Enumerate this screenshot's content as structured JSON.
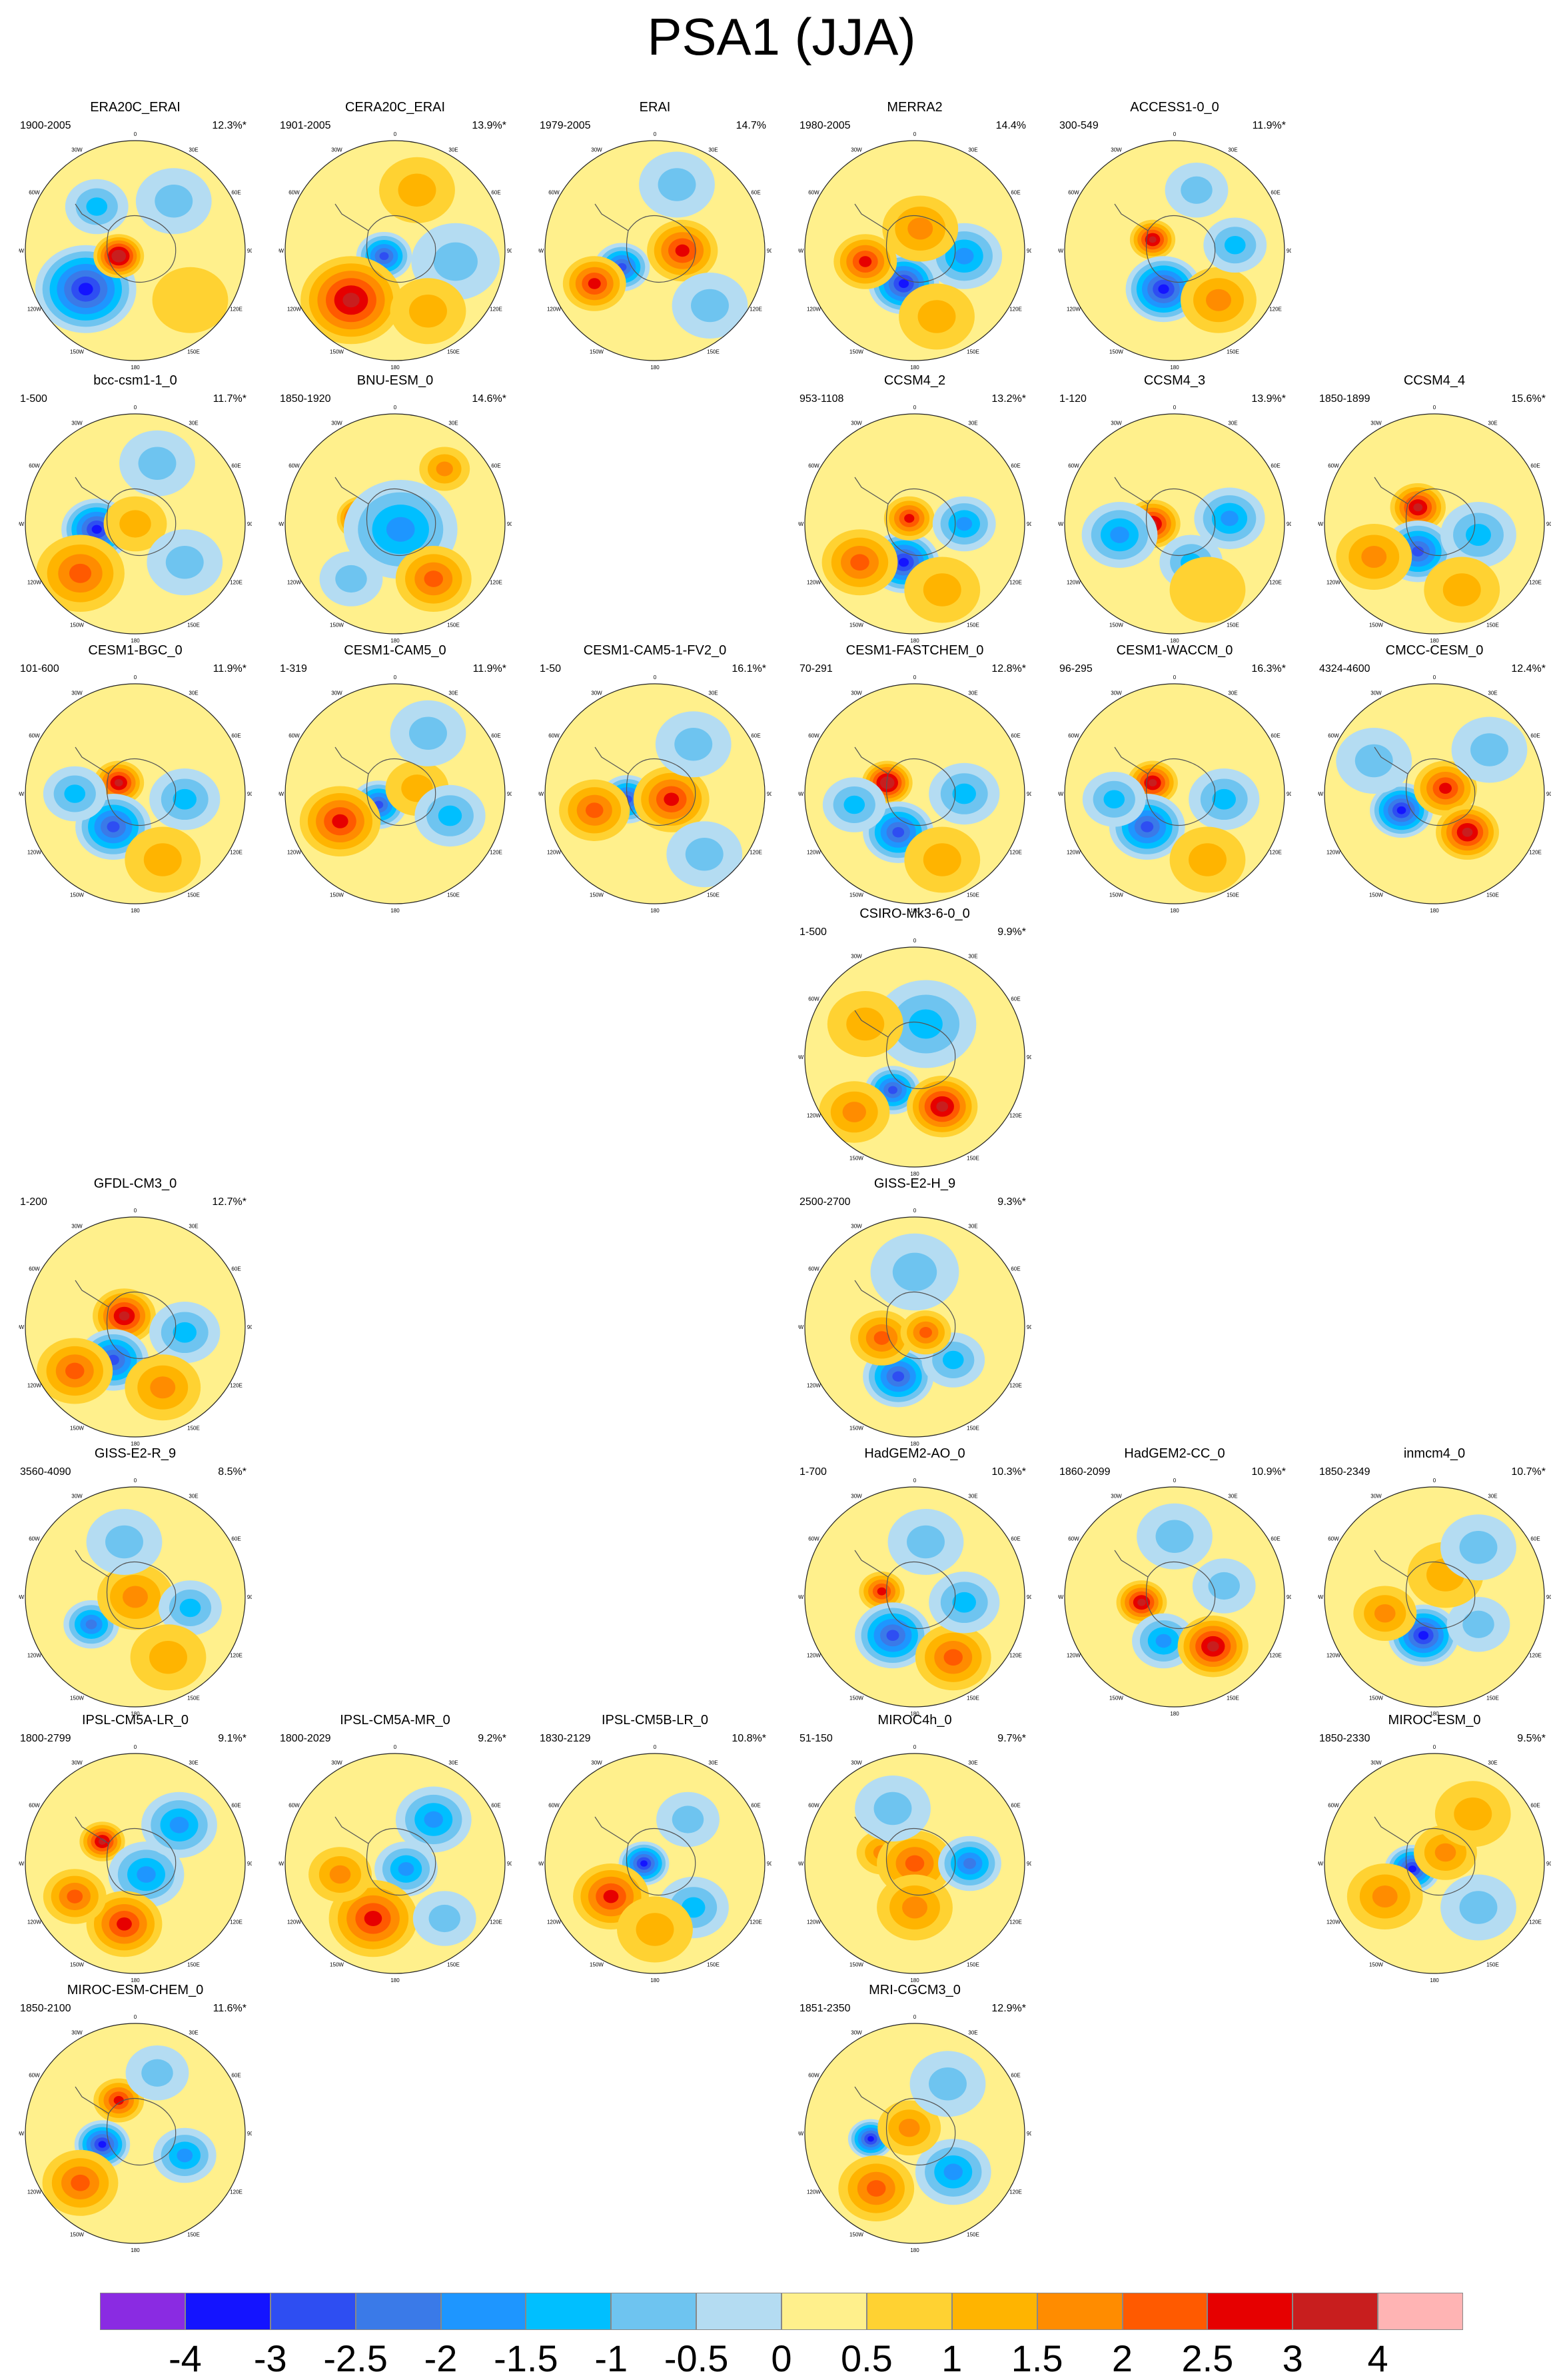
{
  "title": "PSA1 (JJA)",
  "panels": [
    {
      "id": "ERA20C_ERAI",
      "name": "ERA20C_ERAI",
      "years": "1900-2005",
      "pct": "12.3%*",
      "row": 0,
      "col": 0,
      "blobs": [
        [
          -0.45,
          0.35,
          0.4,
          -4
        ],
        [
          -0.15,
          0.05,
          0.2,
          3.5
        ],
        [
          0.35,
          -0.45,
          0.3,
          -1
        ],
        [
          0.5,
          0.45,
          0.3,
          0.5
        ],
        [
          -0.35,
          -0.4,
          0.25,
          -1.5
        ]
      ]
    },
    {
      "id": "CERA20C_ERAI",
      "name": "CERA20C_ERAI",
      "years": "1901-2005",
      "pct": "13.9%*",
      "row": 0,
      "col": 1,
      "blobs": [
        [
          -0.1,
          0.05,
          0.22,
          -3
        ],
        [
          -0.4,
          0.45,
          0.4,
          3
        ],
        [
          0.2,
          -0.55,
          0.3,
          1
        ],
        [
          0.55,
          0.1,
          0.35,
          -0.8
        ],
        [
          0.3,
          0.55,
          0.3,
          0.8
        ]
      ]
    },
    {
      "id": "ERAI",
      "name": "ERAI",
      "years": "1979-2005",
      "pct": "14.7%",
      "row": 0,
      "col": 2,
      "blobs": [
        [
          -0.3,
          0.15,
          0.22,
          -3
        ],
        [
          0.25,
          0.0,
          0.28,
          2.5
        ],
        [
          -0.55,
          0.3,
          0.25,
          2.5
        ],
        [
          0.5,
          0.5,
          0.3,
          -1
        ],
        [
          0.2,
          -0.6,
          0.3,
          -1
        ]
      ]
    },
    {
      "id": "MERRA2",
      "name": "MERRA2",
      "years": "1980-2005",
      "pct": "14.4%",
      "row": 0,
      "col": 3,
      "blobs": [
        [
          -0.1,
          0.3,
          0.28,
          -3.5
        ],
        [
          -0.45,
          0.1,
          0.25,
          2.5
        ],
        [
          0.45,
          0.05,
          0.3,
          -2
        ],
        [
          0.05,
          -0.2,
          0.3,
          1.5
        ],
        [
          0.2,
          0.6,
          0.3,
          1
        ]
      ]
    },
    {
      "id": "ACCESS1-0_0",
      "name": "ACCESS1-0_0",
      "years": "300-549",
      "pct": "11.9%*",
      "row": 0,
      "col": 4,
      "blobs": [
        [
          -0.2,
          -0.1,
          0.18,
          3
        ],
        [
          -0.1,
          0.35,
          0.3,
          -3.5
        ],
        [
          0.4,
          0.45,
          0.3,
          1.5
        ],
        [
          0.55,
          -0.05,
          0.25,
          -1.5
        ],
        [
          0.2,
          -0.55,
          0.25,
          -1
        ]
      ]
    },
    {
      "id": "bcc-csm1-1_0",
      "name": "bcc-csm1-1_0",
      "years": "1-500",
      "pct": "11.7%*",
      "row": 1,
      "col": 0,
      "blobs": [
        [
          -0.35,
          0.05,
          0.28,
          -3.5
        ],
        [
          -0.5,
          0.45,
          0.35,
          2
        ],
        [
          0.0,
          0.0,
          0.25,
          1
        ],
        [
          0.45,
          0.35,
          0.3,
          -1
        ],
        [
          0.2,
          -0.55,
          0.3,
          -0.8
        ]
      ]
    },
    {
      "id": "BNU-ESM_0",
      "name": "BNU-ESM_0",
      "years": "1850-1920",
      "pct": "14.6%*",
      "row": 1,
      "col": 1,
      "blobs": [
        [
          -0.3,
          -0.05,
          0.2,
          3.5
        ],
        [
          0.05,
          0.05,
          0.45,
          -2
        ],
        [
          0.35,
          0.5,
          0.3,
          2
        ],
        [
          0.45,
          -0.5,
          0.2,
          1.5
        ],
        [
          -0.4,
          0.5,
          0.25,
          -1
        ]
      ]
    },
    {
      "id": "CCSM4_2",
      "name": "CCSM4_2",
      "years": "953-1108",
      "pct": "13.2%*",
      "row": 1,
      "col": 3,
      "blobs": [
        [
          -0.1,
          0.35,
          0.28,
          -3.5
        ],
        [
          -0.05,
          -0.05,
          0.2,
          2.5
        ],
        [
          -0.5,
          0.35,
          0.3,
          2
        ],
        [
          0.45,
          0.0,
          0.25,
          -2
        ],
        [
          0.25,
          0.6,
          0.3,
          1
        ]
      ]
    },
    {
      "id": "CCSM4_3",
      "name": "CCSM4_3",
      "years": "1-120",
      "pct": "13.9%*",
      "row": 1,
      "col": 4,
      "blobs": [
        [
          -0.2,
          0.0,
          0.22,
          3
        ],
        [
          -0.5,
          0.1,
          0.3,
          -2
        ],
        [
          0.15,
          0.35,
          0.25,
          -1.5
        ],
        [
          0.5,
          -0.05,
          0.28,
          -2
        ],
        [
          0.3,
          0.6,
          0.3,
          0.5
        ]
      ]
    },
    {
      "id": "CCSM4_4",
      "name": "CCSM4_4",
      "years": "1850-1899",
      "pct": "15.6%*",
      "row": 1,
      "col": 5,
      "blobs": [
        [
          -0.15,
          -0.15,
          0.22,
          3
        ],
        [
          -0.15,
          0.25,
          0.28,
          -3
        ],
        [
          -0.55,
          0.3,
          0.3,
          1.5
        ],
        [
          0.4,
          0.1,
          0.3,
          -1.5
        ],
        [
          0.25,
          0.6,
          0.3,
          1
        ]
      ]
    },
    {
      "id": "CESM1-BGC_0",
      "name": "CESM1-BGC_0",
      "years": "101-600",
      "pct": "11.9%*",
      "row": 2,
      "col": 0,
      "blobs": [
        [
          -0.15,
          -0.1,
          0.2,
          3
        ],
        [
          -0.2,
          0.3,
          0.3,
          -3
        ],
        [
          -0.55,
          0.0,
          0.25,
          -1.5
        ],
        [
          0.45,
          0.05,
          0.28,
          -1.5
        ],
        [
          0.25,
          0.6,
          0.3,
          1
        ]
      ]
    },
    {
      "id": "CESM1-CAM5_0",
      "name": "CESM1-CAM5_0",
      "years": "1-319",
      "pct": "11.9%*",
      "row": 2,
      "col": 1,
      "blobs": [
        [
          -0.15,
          0.1,
          0.22,
          -3
        ],
        [
          -0.5,
          0.25,
          0.32,
          2.5
        ],
        [
          0.2,
          -0.05,
          0.25,
          1
        ],
        [
          0.5,
          0.2,
          0.28,
          -1.5
        ],
        [
          0.3,
          -0.55,
          0.3,
          -1
        ]
      ]
    },
    {
      "id": "CESM1-CAM5-1-FV2_0",
      "name": "CESM1-CAM5-1-FV2_0",
      "years": "1-50",
      "pct": "16.1%*",
      "row": 2,
      "col": 2,
      "blobs": [
        [
          -0.25,
          0.05,
          0.22,
          -3
        ],
        [
          0.15,
          0.05,
          0.3,
          2.5
        ],
        [
          -0.55,
          0.15,
          0.28,
          2
        ],
        [
          0.45,
          0.55,
          0.3,
          -1
        ],
        [
          0.35,
          -0.45,
          0.3,
          -1
        ]
      ]
    },
    {
      "id": "CESM1-FASTCHEM_0",
      "name": "CESM1-FASTCHEM_0",
      "years": "70-291",
      "pct": "12.8%*",
      "row": 2,
      "col": 3,
      "blobs": [
        [
          -0.25,
          -0.1,
          0.2,
          3.5
        ],
        [
          -0.15,
          0.35,
          0.28,
          -3
        ],
        [
          -0.55,
          0.1,
          0.25,
          -1.5
        ],
        [
          0.45,
          0.0,
          0.28,
          -1.5
        ],
        [
          0.25,
          0.6,
          0.3,
          1
        ]
      ]
    },
    {
      "id": "CESM1-WACCM_0",
      "name": "CESM1-WACCM_0",
      "years": "96-295",
      "pct": "16.3%*",
      "row": 2,
      "col": 4,
      "blobs": [
        [
          -0.2,
          -0.1,
          0.2,
          3
        ],
        [
          -0.25,
          0.3,
          0.3,
          -3
        ],
        [
          -0.55,
          0.05,
          0.25,
          -1.5
        ],
        [
          0.45,
          0.05,
          0.28,
          -1.5
        ],
        [
          0.3,
          0.6,
          0.3,
          1
        ]
      ]
    },
    {
      "id": "CMCC-CESM_0",
      "name": "CMCC-CESM_0",
      "years": "4324-4600",
      "pct": "12.4%*",
      "row": 2,
      "col": 5,
      "blobs": [
        [
          -0.3,
          0.15,
          0.25,
          -3.5
        ],
        [
          0.1,
          -0.05,
          0.25,
          2.5
        ],
        [
          0.3,
          0.35,
          0.25,
          3
        ],
        [
          0.5,
          -0.4,
          0.3,
          -1
        ],
        [
          -0.55,
          -0.3,
          0.3,
          -0.8
        ]
      ]
    },
    {
      "id": "CSIRO-Mk3-6-0_0",
      "name": "CSIRO-Mk3-6-0_0",
      "years": "1-500",
      "pct": "9.9%*",
      "row": 3,
      "col": 3,
      "blobs": [
        [
          -0.2,
          0.3,
          0.22,
          -3
        ],
        [
          0.25,
          0.45,
          0.28,
          3
        ],
        [
          0.1,
          -0.3,
          0.4,
          -1.5
        ],
        [
          -0.55,
          0.5,
          0.28,
          1.5
        ],
        [
          -0.45,
          -0.3,
          0.3,
          1
        ]
      ]
    },
    {
      "id": "GFDL-CM3_0",
      "name": "GFDL-CM3_0",
      "years": "1-200",
      "pct": "12.7%*",
      "row": 4,
      "col": 0,
      "blobs": [
        [
          -0.1,
          -0.1,
          0.25,
          3
        ],
        [
          -0.2,
          0.3,
          0.28,
          -3
        ],
        [
          -0.55,
          0.4,
          0.3,
          2
        ],
        [
          0.45,
          0.05,
          0.28,
          -1.5
        ],
        [
          0.25,
          0.55,
          0.3,
          1.5
        ]
      ]
    },
    {
      "id": "GISS-E2-H_9",
      "name": "GISS-E2-H_9",
      "years": "2500-2700",
      "pct": "9.3%*",
      "row": 4,
      "col": 3,
      "blobs": [
        [
          -0.15,
          0.45,
          0.28,
          -3
        ],
        [
          0.35,
          0.3,
          0.25,
          -1.5
        ],
        [
          -0.3,
          0.1,
          0.25,
          2
        ],
        [
          0.1,
          0.05,
          0.2,
          2
        ],
        [
          0.0,
          -0.5,
          0.35,
          -0.8
        ]
      ]
    },
    {
      "id": "GISS-E2-R_9",
      "name": "GISS-E2-R_9",
      "years": "3560-4090",
      "pct": "8.5%*",
      "row": 5,
      "col": 0,
      "blobs": [
        [
          -0.4,
          0.25,
          0.22,
          -2.5
        ],
        [
          0.0,
          0.0,
          0.3,
          1.5
        ],
        [
          0.5,
          0.1,
          0.25,
          -1.5
        ],
        [
          -0.1,
          -0.5,
          0.3,
          -1
        ],
        [
          0.3,
          0.55,
          0.3,
          1
        ]
      ]
    },
    {
      "id": "HadGEM2-AO_0",
      "name": "HadGEM2-AO_0",
      "years": "1-700",
      "pct": "10.3%*",
      "row": 5,
      "col": 3,
      "blobs": [
        [
          -0.3,
          -0.05,
          0.18,
          2.5
        ],
        [
          -0.2,
          0.35,
          0.3,
          -3
        ],
        [
          0.35,
          0.55,
          0.3,
          2
        ],
        [
          0.45,
          0.05,
          0.28,
          -1.5
        ],
        [
          0.1,
          -0.5,
          0.3,
          -1
        ]
      ]
    },
    {
      "id": "HadGEM2-CC_0",
      "name": "HadGEM2-CC_0",
      "years": "1860-2099",
      "pct": "10.9%*",
      "row": 5,
      "col": 4,
      "blobs": [
        [
          -0.3,
          0.05,
          0.2,
          3
        ],
        [
          -0.1,
          0.4,
          0.25,
          -2
        ],
        [
          0.35,
          0.45,
          0.28,
          3
        ],
        [
          0.45,
          -0.1,
          0.25,
          -1
        ],
        [
          0.0,
          -0.55,
          0.3,
          -1
        ]
      ]
    },
    {
      "id": "inmcm4_0",
      "name": "inmcm4_0",
      "years": "1850-2349",
      "pct": "10.7%*",
      "row": 5,
      "col": 5,
      "blobs": [
        [
          -0.1,
          0.35,
          0.28,
          -3.5
        ],
        [
          0.4,
          0.25,
          0.25,
          -1
        ],
        [
          -0.45,
          0.15,
          0.25,
          1.5
        ],
        [
          0.1,
          -0.2,
          0.3,
          0.8
        ],
        [
          0.4,
          -0.45,
          0.3,
          -0.8
        ]
      ]
    },
    {
      "id": "IPSL-CM5A-LR_0",
      "name": "IPSL-CM5A-LR_0",
      "years": "1800-2799",
      "pct": "9.1%*",
      "row": 6,
      "col": 0,
      "blobs": [
        [
          -0.3,
          -0.2,
          0.18,
          3
        ],
        [
          0.1,
          0.1,
          0.3,
          -2
        ],
        [
          0.4,
          -0.35,
          0.3,
          -2
        ],
        [
          -0.1,
          0.55,
          0.3,
          2.5
        ],
        [
          -0.55,
          0.3,
          0.25,
          2
        ]
      ]
    },
    {
      "id": "IPSL-CM5A-MR_0",
      "name": "IPSL-CM5A-MR_0",
      "years": "1800-2029",
      "pct": "9.2%*",
      "row": 6,
      "col": 1,
      "blobs": [
        [
          0.1,
          0.05,
          0.25,
          -2
        ],
        [
          0.35,
          -0.4,
          0.3,
          -2
        ],
        [
          -0.2,
          0.5,
          0.35,
          2.5
        ],
        [
          -0.5,
          0.1,
          0.25,
          1.5
        ],
        [
          0.45,
          0.5,
          0.25,
          -0.8
        ]
      ]
    },
    {
      "id": "IPSL-CM5B-LR_0",
      "name": "IPSL-CM5B-LR_0",
      "years": "1830-2129",
      "pct": "10.8%*",
      "row": 6,
      "col": 2,
      "blobs": [
        [
          -0.1,
          0.0,
          0.2,
          -3.5
        ],
        [
          -0.4,
          0.3,
          0.3,
          2.5
        ],
        [
          0.35,
          0.4,
          0.28,
          -1.5
        ],
        [
          0.3,
          -0.4,
          0.25,
          -1
        ],
        [
          0.0,
          0.6,
          0.3,
          1
        ]
      ]
    },
    {
      "id": "MIROC4h_0",
      "name": "MIROC4h_0",
      "years": "51-150",
      "pct": "9.7%*",
      "row": 6,
      "col": 3,
      "blobs": [
        [
          -0.3,
          -0.1,
          0.2,
          1.5
        ],
        [
          0.0,
          0.0,
          0.3,
          2
        ],
        [
          0.5,
          0.0,
          0.25,
          -2.5
        ],
        [
          0.0,
          0.4,
          0.3,
          1.5
        ],
        [
          -0.2,
          -0.5,
          0.3,
          -1
        ]
      ]
    },
    {
      "id": "MIROC-ESM_0",
      "name": "MIROC-ESM_0",
      "years": "1850-2330",
      "pct": "9.5%*",
      "row": 6,
      "col": 5,
      "blobs": [
        [
          -0.2,
          0.05,
          0.22,
          -3.5
        ],
        [
          0.1,
          -0.1,
          0.25,
          1.5
        ],
        [
          0.4,
          0.4,
          0.3,
          -1
        ],
        [
          -0.45,
          0.3,
          0.3,
          1.5
        ],
        [
          0.35,
          -0.45,
          0.3,
          0.8
        ]
      ]
    },
    {
      "id": "MIROC-ESM-CHEM_0",
      "name": "MIROC-ESM-CHEM_0",
      "years": "1850-2100",
      "pct": "11.6%*",
      "row": 7,
      "col": 0,
      "blobs": [
        [
          -0.3,
          0.1,
          0.22,
          -3.5
        ],
        [
          -0.15,
          -0.3,
          0.2,
          2.5
        ],
        [
          0.45,
          0.2,
          0.25,
          -2
        ],
        [
          -0.5,
          0.45,
          0.3,
          2
        ],
        [
          0.2,
          -0.55,
          0.25,
          -1
        ]
      ]
    },
    {
      "id": "MRI-CGCM3_0",
      "name": "MRI-CGCM3_0",
      "years": "1851-2350",
      "pct": "12.9%*",
      "row": 7,
      "col": 3,
      "blobs": [
        [
          -0.4,
          0.05,
          0.18,
          -4
        ],
        [
          0.35,
          0.35,
          0.3,
          -2
        ],
        [
          -0.05,
          -0.05,
          0.25,
          1.5
        ],
        [
          -0.35,
          0.5,
          0.3,
          2
        ],
        [
          0.3,
          -0.45,
          0.3,
          -0.8
        ]
      ]
    }
  ],
  "colorbar": {
    "colors": [
      "#8a2be2",
      "#1414ff",
      "#2e4ef2",
      "#3a7ae8",
      "#1e96ff",
      "#00bfff",
      "#6ec4f0",
      "#b4dcf2",
      "#fff08c",
      "#ffd232",
      "#ffb400",
      "#ff8c00",
      "#ff5a00",
      "#e60000",
      "#c81e1e",
      "#ffb4b4"
    ],
    "labels": [
      "-4",
      "-3",
      "-2.5",
      "-2",
      "-1.5",
      "-1",
      "-0.5",
      "0",
      "0.5",
      "1",
      "1.5",
      "2",
      "2.5",
      "3",
      "4"
    ]
  }
}
